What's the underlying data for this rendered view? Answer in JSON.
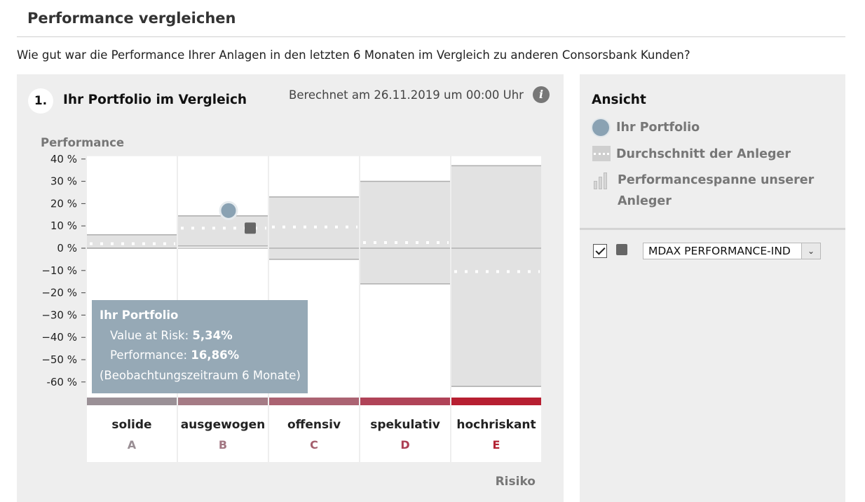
{
  "page": {
    "heading": "Performance vergleichen",
    "intro": "Wie gut war die Performance Ihrer Anlagen in den letzten 6 Monaten im Vergleich zu anderen Consorsbank Kunden?"
  },
  "section": {
    "step_number": "1.",
    "title": "Ihr Portfolio im Vergleich",
    "calculated": "Berechnet am 26.11.2019 um 00:00 Uhr",
    "info_icon": "info-icon"
  },
  "tooltip": {
    "title": "Ihr Portfolio",
    "var_label": "Value at Risk: ",
    "var_value": "5,34%",
    "perf_label": "Performance: ",
    "perf_value": "16,86%",
    "period": "(Beobachtungszeitraum 6 Monate)"
  },
  "sidebar": {
    "title": "Ansicht",
    "legend": {
      "portfolio": "Ihr Portfolio",
      "average": "Durchschnitt der Anleger",
      "range_line1": "Performancespanne unserer",
      "range_line2": "Anleger"
    },
    "benchmark": {
      "checked": true,
      "value": "MDAX PERFORMANCE-IND",
      "color": "#666666"
    }
  },
  "chart_data": {
    "type": "range-bar",
    "ylabel": "Performance",
    "xlabel": "Risiko",
    "ylim": [
      -70,
      40
    ],
    "yticks": [
      40,
      30,
      20,
      10,
      0,
      -10,
      -20,
      -30,
      -40,
      -50,
      -60
    ],
    "ytick_labels": [
      "40 %",
      "30 %",
      "20 %",
      "10 %",
      "0 %",
      "−10 %",
      "−20 %",
      "−30 %",
      "−40 %",
      "−50 %",
      "-60 %"
    ],
    "categories": [
      {
        "name": "solide",
        "letter": "A",
        "color": "#9a9096",
        "letter_color": "#998e94",
        "range": [
          0,
          6
        ],
        "avg": 2
      },
      {
        "name": "ausgewogen",
        "letter": "B",
        "color": "#a57b85",
        "letter_color": "#a27682",
        "range": [
          1,
          14.5
        ],
        "avg": 9
      },
      {
        "name": "offensiv",
        "letter": "C",
        "color": "#ab6372",
        "letter_color": "#a45f6d",
        "range": [
          -5,
          23
        ],
        "avg": 9.5
      },
      {
        "name": "spekulativ",
        "letter": "D",
        "color": "#b04358",
        "letter_color": "#ac3e53",
        "range": [
          -16,
          30
        ],
        "avg": 2.5
      },
      {
        "name": "hochriskant",
        "letter": "E",
        "color": "#b71f31",
        "letter_color": "#b32434",
        "range": [
          -62,
          37
        ],
        "avg": -10.5
      }
    ],
    "portfolio": {
      "name": "Ihr Portfolio",
      "category": "ausgewogen",
      "value": 16.86,
      "color": "#8aa2b3"
    },
    "benchmark": {
      "name": "MDAX PERFORMANCE-IND",
      "category": "ausgewogen",
      "value": 9,
      "color": "#666666"
    }
  }
}
